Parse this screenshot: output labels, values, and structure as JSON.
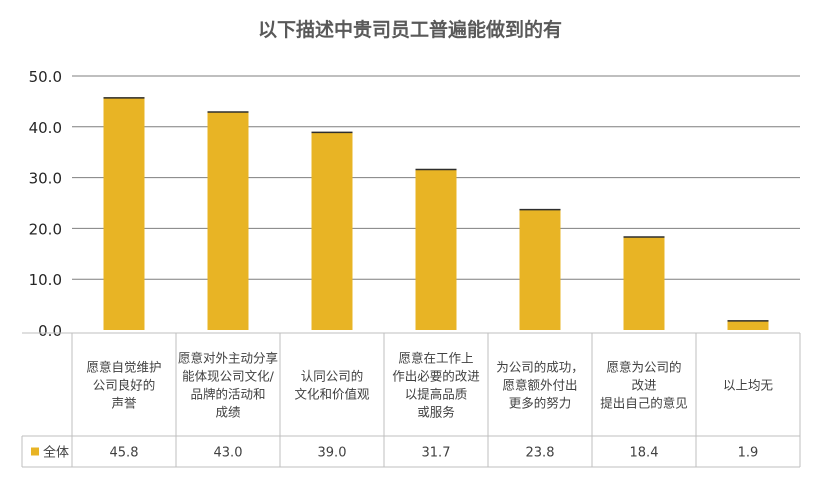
{
  "chart_data": {
    "type": "bar",
    "title": "以下描述中贵司员工普遍能做到的有",
    "categories": [
      [
        "愿意自觉维护",
        "公司良好的",
        "声誉"
      ],
      [
        "愿意对外主动分享",
        "能体现公司文化/",
        "品牌的活动和",
        "成绩"
      ],
      [
        "认同公司的",
        "文化和价值观"
      ],
      [
        "愿意在工作上",
        "作出必要的改进",
        "以提高品质",
        "或服务"
      ],
      [
        "为公司的成功，",
        "愿意额外付出",
        "更多的努力"
      ],
      [
        "愿意为公司的",
        "改进",
        "提出自己的意见"
      ],
      [
        "以上均无"
      ]
    ],
    "series": [
      {
        "name": "全体",
        "values": [
          45.8,
          43.0,
          39.0,
          31.7,
          23.8,
          18.4,
          1.9
        ],
        "value_labels": [
          "45.8",
          "43.0",
          "39.0",
          "31.7",
          "23.8",
          "18.4",
          "1.9"
        ]
      }
    ],
    "y_ticks": [
      "50.0",
      "40.0",
      "30.0",
      "20.0",
      "10.0",
      "0.0"
    ],
    "ylim": [
      0,
      50
    ],
    "grid": true,
    "data_table": true,
    "colors": {
      "bar": "#E8B425",
      "bar_edge": "#2E2E2E",
      "grid": "#7F7F7F",
      "table_border": "#BFBFBF",
      "title": "#595959",
      "text": "#404040"
    }
  }
}
